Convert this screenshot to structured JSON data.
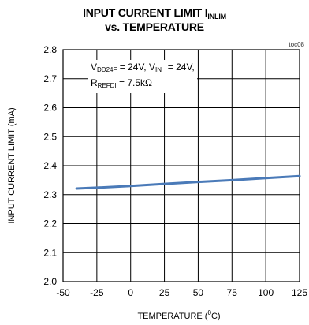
{
  "title_line1": "INPUT CURRENT LIMIT I",
  "title_line1_sub": "INLIM",
  "title_line2": "vs. TEMPERATURE",
  "chart_code": "toc08",
  "annotation": {
    "l1_a": "V",
    "l1_a_sub": "DD24F",
    "l1_b": " = 24V, V",
    "l1_b_sub": "IN_",
    "l1_c": " = 24V,",
    "l2_a": "R",
    "l2_a_sub": "REFDI",
    "l2_b": " = 7.5kΩ"
  },
  "xlabel": {
    "pre": "TEMPERATURE (",
    "sup": "0",
    "post": "C)"
  },
  "ylabel": "INPUT CURRENT LIMIT (mA)",
  "colors": {
    "series": "#4a7ab8",
    "grid": "#000000"
  },
  "chart_data": {
    "type": "line",
    "xlim": [
      -50,
      125
    ],
    "ylim": [
      2.0,
      2.8
    ],
    "x_ticks": [
      -50,
      -25,
      0,
      25,
      50,
      75,
      100,
      125
    ],
    "y_ticks": [
      2.0,
      2.1,
      2.2,
      2.3,
      2.4,
      2.5,
      2.6,
      2.7,
      2.8
    ],
    "grid": true,
    "series": [
      {
        "x": [
          -40,
          -25,
          0,
          25,
          50,
          75,
          100,
          125
        ],
        "y": [
          2.321,
          2.324,
          2.33,
          2.337,
          2.344,
          2.35,
          2.357,
          2.364
        ]
      }
    ]
  }
}
